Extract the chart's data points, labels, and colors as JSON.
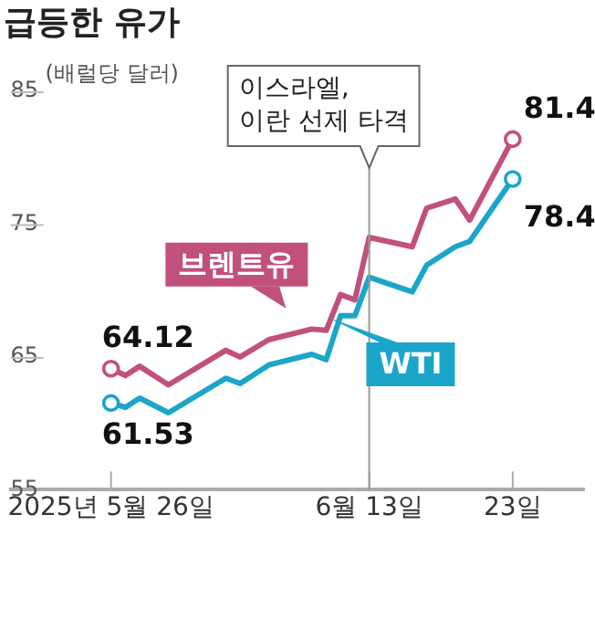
{
  "chart_data": {
    "type": "line",
    "title": "급등한 유가",
    "ylabel": "(배럴당 달러)",
    "xlim": [
      "2025-05-19",
      "2025-06-28"
    ],
    "xticks": [
      {
        "value": "2025-05-26",
        "label": "2025년 5월 26일"
      },
      {
        "value": "2025-06-13",
        "label": "6월 13일"
      },
      {
        "value": "2025-06-23",
        "label": "23일"
      }
    ],
    "ylim": [
      55,
      85
    ],
    "yticks": [
      55,
      65,
      75,
      85
    ],
    "line_style": "solid",
    "grid": false,
    "ref_lines": [
      {
        "axis": "x",
        "value": "2025-06-13",
        "label": "이스라엘,\n이란 선제 타격",
        "color": "#999999"
      }
    ],
    "series": [
      {
        "name": "브렌트유",
        "color": "#c2507c",
        "x": [
          "2025-05-26",
          "2025-05-27",
          "2025-05-28",
          "2025-05-30",
          "2025-06-03",
          "2025-06-04",
          "2025-06-06",
          "2025-06-09",
          "2025-06-10",
          "2025-06-11",
          "2025-06-12",
          "2025-06-13",
          "2025-06-16",
          "2025-06-17",
          "2025-06-19",
          "2025-06-20",
          "2025-06-23"
        ],
        "values": [
          64.12,
          63.6,
          64.3,
          62.9,
          65.5,
          65.0,
          66.3,
          67.1,
          67.0,
          69.7,
          69.3,
          74.0,
          73.3,
          76.2,
          76.9,
          75.3,
          81.4
        ],
        "value_labels": [
          "64.12",
          null,
          null,
          null,
          null,
          null,
          null,
          null,
          null,
          null,
          null,
          null,
          null,
          null,
          null,
          null,
          "81.4"
        ]
      },
      {
        "name": "WTI",
        "color": "#1ba6c9",
        "x": [
          "2025-05-26",
          "2025-05-27",
          "2025-05-28",
          "2025-05-30",
          "2025-06-03",
          "2025-06-04",
          "2025-06-06",
          "2025-06-09",
          "2025-06-10",
          "2025-06-11",
          "2025-06-12",
          "2025-06-13",
          "2025-06-16",
          "2025-06-17",
          "2025-06-19",
          "2025-06-20",
          "2025-06-23"
        ],
        "values": [
          61.53,
          61.2,
          61.9,
          60.8,
          63.4,
          63.0,
          64.4,
          65.2,
          64.8,
          68.1,
          68.1,
          71.0,
          69.9,
          71.9,
          73.3,
          73.7,
          78.4
        ],
        "value_labels": [
          "61.53",
          null,
          null,
          null,
          null,
          null,
          null,
          null,
          null,
          null,
          null,
          null,
          null,
          null,
          null,
          null,
          "78.4"
        ]
      }
    ]
  }
}
